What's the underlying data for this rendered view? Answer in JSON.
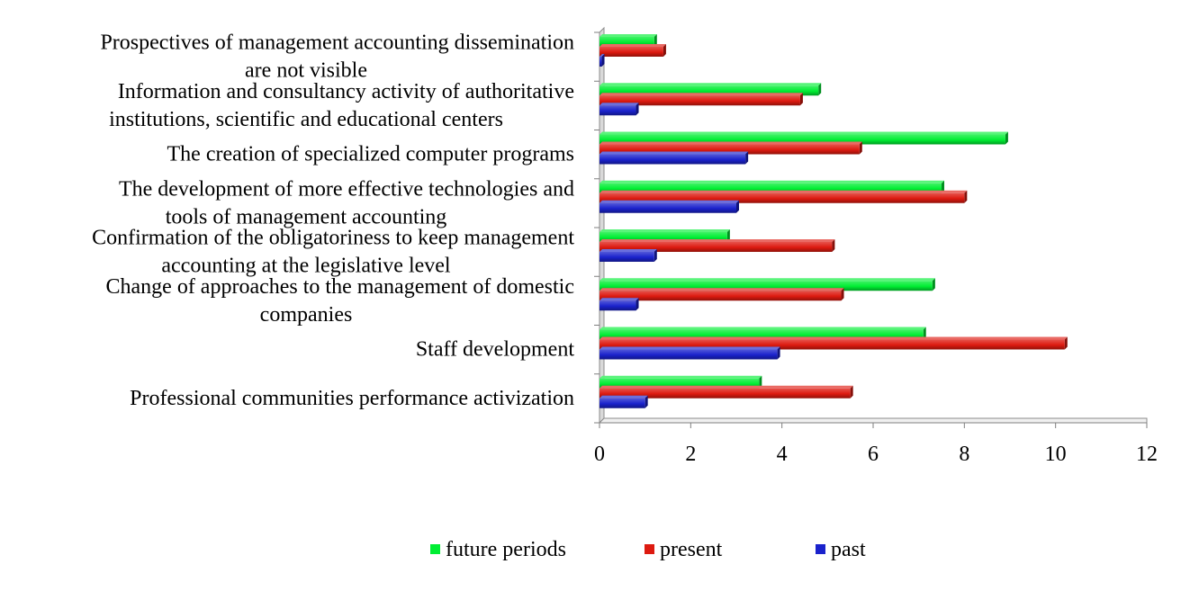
{
  "chart_data": {
    "type": "bar",
    "orientation": "horizontal",
    "style": "3d",
    "title": "",
    "xlabel": "",
    "ylabel": "",
    "xlim": [
      0,
      12
    ],
    "x_ticks": [
      "0",
      "2",
      "4",
      "6",
      "8",
      "10",
      "12"
    ],
    "grid": false,
    "legend_position": "bottom",
    "categories": [
      [
        "Prospectives of management accounting dissemination",
        "are not visible"
      ],
      [
        "Information and consultancy activity of authoritative",
        "institutions, scientific and educational centers"
      ],
      [
        "The creation of specialized computer programs"
      ],
      [
        "The development of more effective technologies and",
        "tools of management accounting"
      ],
      [
        "Confirmation of the obligatoriness to keep management",
        "accounting at the legislative level"
      ],
      [
        "Change of approaches to the management of domestic",
        "companies"
      ],
      [
        "Staff development"
      ],
      [
        "Professional communities performance activization"
      ]
    ],
    "series": [
      {
        "name": "future periods",
        "color": "#00ee33",
        "values": [
          1.2,
          4.8,
          8.9,
          7.5,
          2.8,
          7.3,
          7.1,
          3.5
        ]
      },
      {
        "name": "present",
        "color": "#dd1a10",
        "values": [
          1.4,
          4.4,
          5.7,
          8.0,
          5.1,
          5.3,
          10.2,
          5.5
        ]
      },
      {
        "name": "past",
        "color": "#1a22cc",
        "values": [
          0.05,
          0.8,
          3.2,
          3.0,
          1.2,
          0.8,
          3.9,
          1.0
        ]
      }
    ]
  }
}
